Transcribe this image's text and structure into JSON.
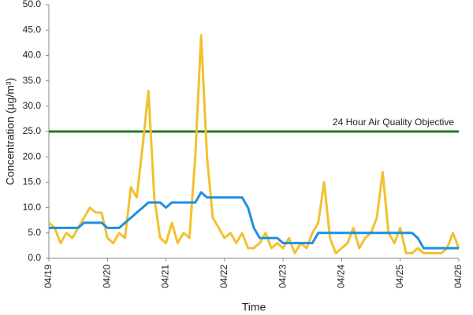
{
  "chart_data": {
    "type": "line",
    "xlabel": "Time",
    "ylabel": "Concentration (µg/m³)",
    "x": [
      0,
      0.1,
      0.2,
      0.3,
      0.4,
      0.5,
      0.6,
      0.7,
      0.8,
      0.9,
      1,
      1.1,
      1.2,
      1.3,
      1.4,
      1.5,
      1.6,
      1.7,
      1.8,
      1.9,
      2,
      2.1,
      2.2,
      2.3,
      2.4,
      2.5,
      2.6,
      2.7,
      2.8,
      2.9,
      3,
      3.1,
      3.2,
      3.3,
      3.4,
      3.5,
      3.6,
      3.7,
      3.8,
      3.9,
      4,
      4.1,
      4.2,
      4.3,
      4.4,
      4.5,
      4.6,
      4.7,
      4.8,
      4.9,
      5,
      5.1,
      5.2,
      5.3,
      5.4,
      5.5,
      5.6,
      5.7,
      5.8,
      5.9,
      6,
      6.1,
      6.2,
      6.3,
      6.4,
      6.5,
      6.6,
      6.7,
      6.8,
      6.9,
      7
    ],
    "series": [
      {
        "color": "#f2c12e",
        "values": [
          7,
          6,
          3,
          5,
          4,
          6,
          8,
          10,
          9,
          9,
          4,
          3,
          5,
          4,
          14,
          12,
          22,
          33,
          12,
          4,
          3,
          7,
          3,
          5,
          4,
          20,
          44,
          20,
          8,
          6,
          4,
          5,
          3,
          5,
          2,
          2,
          3,
          5,
          2,
          3,
          2,
          4,
          1,
          3,
          2,
          5,
          7,
          15,
          4,
          1,
          2,
          3,
          6,
          2,
          4,
          5,
          8,
          17,
          5,
          3,
          6,
          1,
          1,
          2,
          1,
          1,
          1,
          1,
          2,
          5,
          2
        ]
      },
      {
        "color": "#1f8fe0",
        "values": [
          6,
          6,
          6,
          6,
          6,
          6,
          7,
          7,
          7,
          7,
          6,
          6,
          6,
          7,
          8,
          9,
          10,
          11,
          11,
          11,
          10,
          11,
          11,
          11,
          11,
          11,
          13,
          12,
          12,
          12,
          12,
          12,
          12,
          12,
          10,
          6,
          4,
          4,
          4,
          4,
          3,
          3,
          3,
          3,
          3,
          3,
          5,
          5,
          5,
          5,
          5,
          5,
          5,
          5,
          5,
          5,
          5,
          5,
          5,
          5,
          5,
          5,
          5,
          4,
          2,
          2,
          2,
          2,
          2,
          2,
          2
        ]
      }
    ],
    "objective": {
      "label": "24 Hour Air Quality Objective",
      "value": 25,
      "color": "#1b7d1b"
    },
    "xlim": [
      0,
      7
    ],
    "xticks": [
      {
        "value": 0,
        "label": "04/19"
      },
      {
        "value": 1,
        "label": "04/20"
      },
      {
        "value": 2,
        "label": "04/21"
      },
      {
        "value": 3,
        "label": "04/22"
      },
      {
        "value": 4,
        "label": "04/23"
      },
      {
        "value": 5,
        "label": "04/24"
      },
      {
        "value": 6,
        "label": "04/25"
      },
      {
        "value": 7,
        "label": "04/26"
      }
    ],
    "ylim": [
      0,
      50
    ],
    "yticks": [
      {
        "value": 0,
        "label": "0.0"
      },
      {
        "value": 5,
        "label": "5.0"
      },
      {
        "value": 10,
        "label": "10.0"
      },
      {
        "value": 15,
        "label": "15.0"
      },
      {
        "value": 20,
        "label": "20.0"
      },
      {
        "value": 25,
        "label": "25.0"
      },
      {
        "value": 30,
        "label": "30.0"
      },
      {
        "value": 35,
        "label": "35.0"
      },
      {
        "value": 40,
        "label": "40.0"
      },
      {
        "value": 45,
        "label": "45.0"
      },
      {
        "value": 50,
        "label": "50.0"
      }
    ],
    "grid": false
  }
}
